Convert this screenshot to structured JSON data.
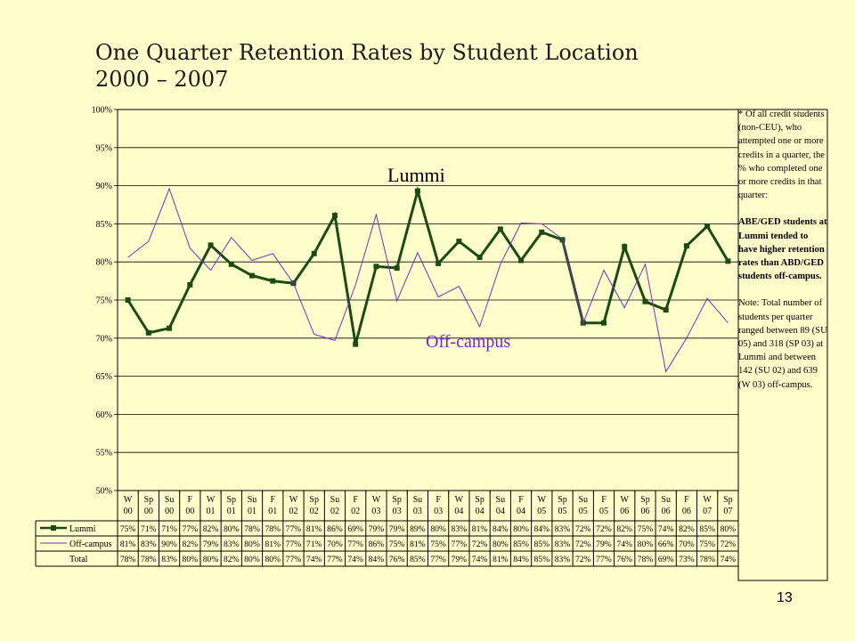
{
  "title_line1": "One Quarter Retention Rates by Student Location",
  "title_line2": "2000 – 2007",
  "page_number": "13",
  "note": {
    "para1": "* Of all credit students (non-CEU), who attempted one or more credits in a quarter, the % who completed one or more credits in that quarter:",
    "para2": "ABE/GED students at Lummi tended to have higher retention rates than ABD/GED students off-campus.",
    "para3": "Note: Total number of students per quarter ranged between 89 (SU 05) and 318 (SP 03) at Lummi and between 142 (SU 02) and 639 (W 03) off-campus."
  },
  "chart_data": {
    "type": "line",
    "categories": [
      "W 00",
      "Sp 00",
      "Su 00",
      "F 00",
      "W 01",
      "Sp 01",
      "Su 01",
      "F 01",
      "W 02",
      "Sp 02",
      "Su 02",
      "F 02",
      "W 03",
      "Sp 03",
      "Su 03",
      "F 03",
      "W 04",
      "Sp 04",
      "Su 04",
      "F 04",
      "W 05",
      "Sp 05",
      "Su 05",
      "F 05",
      "W 06",
      "Sp 06",
      "Su 06",
      "F 06",
      "W 07",
      "Sp 07"
    ],
    "ylim": [
      0.5,
      1.0
    ],
    "y_ticks": [
      "50%",
      "55%",
      "60%",
      "65%",
      "70%",
      "75%",
      "80%",
      "85%",
      "90%",
      "95%",
      "100%"
    ],
    "series": [
      {
        "name": "Lummi",
        "label": "Lummi",
        "color": "#1b4a12",
        "marker": "square",
        "values": [
          0.75,
          0.707,
          0.713,
          0.77,
          0.822,
          0.797,
          0.782,
          0.775,
          0.772,
          0.811,
          0.861,
          0.692,
          0.794,
          0.792,
          0.893,
          0.798,
          0.827,
          0.806,
          0.843,
          0.802,
          0.839,
          0.829,
          0.72,
          0.72,
          0.82,
          0.748,
          0.737,
          0.821,
          0.847,
          0.801
        ],
        "labels": [
          "75%",
          "71%",
          "71%",
          "77%",
          "82%",
          "80%",
          "78%",
          "78%",
          "77%",
          "81%",
          "86%",
          "69%",
          "79%",
          "79%",
          "89%",
          "80%",
          "83%",
          "81%",
          "84%",
          "80%",
          "84%",
          "83%",
          "72%",
          "72%",
          "82%",
          "75%",
          "74%",
          "82%",
          "85%",
          "80%"
        ]
      },
      {
        "name": "Off-campus",
        "label": "Off-campus",
        "color": "#7a2cc0",
        "marker": "none",
        "values": [
          0.806,
          0.827,
          0.896,
          0.818,
          0.789,
          0.832,
          0.802,
          0.811,
          0.772,
          0.705,
          0.697,
          0.77,
          0.862,
          0.749,
          0.812,
          0.754,
          0.768,
          0.715,
          0.797,
          0.851,
          0.85,
          0.83,
          0.72,
          0.789,
          0.74,
          0.797,
          0.656,
          0.7,
          0.752,
          0.72
        ],
        "labels": [
          "81%",
          "83%",
          "90%",
          "82%",
          "79%",
          "83%",
          "80%",
          "81%",
          "77%",
          "71%",
          "70%",
          "77%",
          "86%",
          "75%",
          "81%",
          "75%",
          "77%",
          "72%",
          "80%",
          "85%",
          "85%",
          "83%",
          "72%",
          "79%",
          "74%",
          "80%",
          "66%",
          "70%",
          "75%",
          "72%"
        ]
      }
    ],
    "total": {
      "name": "Total",
      "labels": [
        "78%",
        "78%",
        "83%",
        "80%",
        "80%",
        "82%",
        "80%",
        "80%",
        "77%",
        "74%",
        "77%",
        "74%",
        "84%",
        "76%",
        "85%",
        "77%",
        "79%",
        "74%",
        "81%",
        "84%",
        "85%",
        "83%",
        "72%",
        "77%",
        "76%",
        "78%",
        "69%",
        "73%",
        "78%",
        "74%"
      ]
    },
    "grid": "horizontal"
  }
}
